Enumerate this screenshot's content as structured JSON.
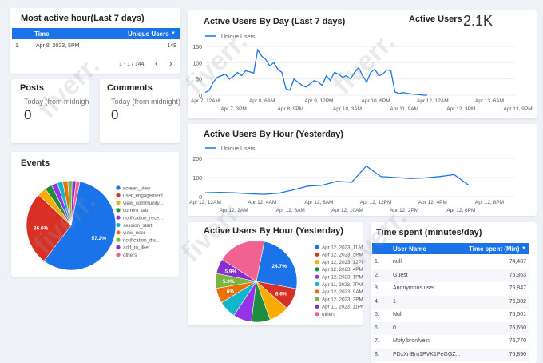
{
  "most_active": {
    "title": "Most active hour(Last 7 days)",
    "col_time": "Time",
    "col_users": "Unique Users",
    "sort_icon": "arrow-down-icon",
    "row_index": "1.",
    "row_time": "Apr 8, 2023, 5PM",
    "row_users": "149",
    "pagination": "1 - 1 / 144"
  },
  "posts": {
    "title": "Posts",
    "subtitle": "Today (from midnight)",
    "value": "0"
  },
  "comments": {
    "title": "Comments",
    "subtitle": "Today (from midnight)",
    "value": "0"
  },
  "active_users": {
    "label": "Active Users",
    "value": "2.1K"
  },
  "by_day": {
    "title": "Active Users By Day (Last 7 days)",
    "legend": "Unique Users",
    "color": "#1a73e8",
    "chart_data": {
      "type": "line",
      "y_ticks": [
        "150",
        "100",
        "50",
        "0"
      ],
      "ylim": [
        0,
        150
      ],
      "x_ticks_top": [
        "Apr 7, 12AM",
        "Apr 8, 6AM",
        "Apr 9, 12PM",
        "Apr 10, 6PM",
        "Apr 12, 12AM",
        "Apr 13, 6AM"
      ],
      "x_ticks_bottom": [
        "Apr 7, 3PM",
        "Apr 8, 9PM",
        "Apr 10, 3AM",
        "Apr 11, 9AM",
        "Apr 12, 3PM",
        "Apr 13, 9PM"
      ],
      "values": [
        8,
        15,
        40,
        55,
        60,
        65,
        50,
        58,
        70,
        60,
        75,
        72,
        68,
        140,
        120,
        110,
        90,
        100,
        80,
        70,
        20,
        15,
        50,
        40,
        30,
        25,
        35,
        45,
        40,
        30,
        60,
        45,
        70,
        65,
        55,
        60,
        50,
        70,
        85,
        60,
        40,
        70,
        80,
        60,
        65,
        78,
        75,
        10,
        5,
        8,
        6,
        4,
        3,
        2,
        0,
        0
      ]
    }
  },
  "by_hour": {
    "title": "Active Users By Hour (Yesterday)",
    "legend": "Unique Users",
    "color": "#1a73e8",
    "chart_data": {
      "type": "line",
      "y_ticks": [
        "200",
        "100",
        "0"
      ],
      "ylim": [
        0,
        200
      ],
      "x_ticks_top": [
        "Apr 12, 12AM",
        "Apr 12, 4AM",
        "Apr 12, 8AM",
        "Apr 12, 12PM",
        "Apr 12, 4PM",
        "Apr 12, 8PM"
      ],
      "x_ticks_bottom": [
        "Apr 12, 2AM",
        "Apr 12, 6AM",
        "Apr 12, 10AM",
        "Apr 12, 2PM",
        "Apr 12, 6PM"
      ],
      "values": [
        20,
        22,
        20,
        15,
        12,
        18,
        35,
        55,
        60,
        80,
        75,
        160,
        105,
        100,
        95,
        98,
        105,
        115,
        60
      ]
    }
  },
  "events": {
    "title": "Events",
    "chart_data": {
      "type": "pie",
      "slices": [
        {
          "name": "screen_view",
          "value": 57.2,
          "color": "#1a73e8"
        },
        {
          "name": "user_engagement",
          "value": 26.6,
          "color": "#d93025"
        },
        {
          "name": "view_community...",
          "value": 3.2,
          "color": "#f9ab00"
        },
        {
          "name": "current_tab",
          "value": 2.6,
          "color": "#1e8e3e"
        },
        {
          "name": "notification_rece...",
          "value": 2.2,
          "color": "#9334e6"
        },
        {
          "name": "session_start",
          "value": 2.0,
          "color": "#12b5cb"
        },
        {
          "name": "view_user",
          "value": 1.8,
          "color": "#e8710a"
        },
        {
          "name": "notification_dis...",
          "value": 1.6,
          "color": "#7cb342"
        },
        {
          "name": "add_to_like",
          "value": 1.4,
          "color": "#8430ce"
        },
        {
          "name": "others",
          "value": 1.4,
          "color": "#f06292"
        }
      ],
      "labels": {
        "screen_view": "57.2%",
        "user_engagement": "26.6%"
      }
    }
  },
  "pie_hour": {
    "title": "Active Users By Hour (Yesterday)",
    "chart_data": {
      "type": "pie",
      "slices": [
        {
          "name": "Apr 12, 2023, 11AM",
          "value": 24.7,
          "color": "#1a73e8",
          "label": "24.7%"
        },
        {
          "name": "Apr 12, 2023, 5PM",
          "value": 8.6,
          "color": "#d93025",
          "label": "8.6%"
        },
        {
          "name": "Apr 12, 2023, 12PM",
          "value": 8.0,
          "color": "#f9ab00",
          "label": ""
        },
        {
          "name": "Apr 12, 2023, 4PM",
          "value": 7.5,
          "color": "#1e8e3e",
          "label": ""
        },
        {
          "name": "Apr 12, 2023, 1PM",
          "value": 7.3,
          "color": "#9334e6",
          "label": ""
        },
        {
          "name": "Apr 11, 2023, 7PM",
          "value": 7.0,
          "color": "#12b5cb",
          "label": ""
        },
        {
          "name": "Apr 12, 2023, 9AM",
          "value": 6.0,
          "color": "#e8710a",
          "label": "6%"
        },
        {
          "name": "Apr 12, 2023, 3PM",
          "value": 5.9,
          "color": "#7cb342",
          "label": "5.9%"
        },
        {
          "name": "Apr 11, 2023, 11PM",
          "value": 5.9,
          "color": "#8430ce",
          "label": "5.9%"
        },
        {
          "name": "others",
          "value": 19.1,
          "color": "#f06292",
          "label": ""
        }
      ]
    }
  },
  "time_spent": {
    "title": "Time spent (minutes/day)",
    "col_user": "User Name",
    "col_time": "Time spent (Min)",
    "sort_icon": "arrow-down-icon",
    "rows": [
      {
        "idx": "1.",
        "name": "null",
        "value": "74,487"
      },
      {
        "idx": "2.",
        "name": "Guest",
        "value": "75,363"
      },
      {
        "idx": "3.",
        "name": "Anonymous user",
        "value": "75,847"
      },
      {
        "idx": "4.",
        "name": "1",
        "value": "76,302"
      },
      {
        "idx": "5.",
        "name": "Null",
        "value": "76,501"
      },
      {
        "idx": "6.",
        "name": "0",
        "value": "76,650"
      },
      {
        "idx": "7.",
        "name": "Moty bronfvein",
        "value": "76,770"
      },
      {
        "idx": "8.",
        "name": "PDxXrfBru1PVK1PeGGZ...",
        "value": "76,890"
      }
    ]
  },
  "watermark": "fiverr."
}
